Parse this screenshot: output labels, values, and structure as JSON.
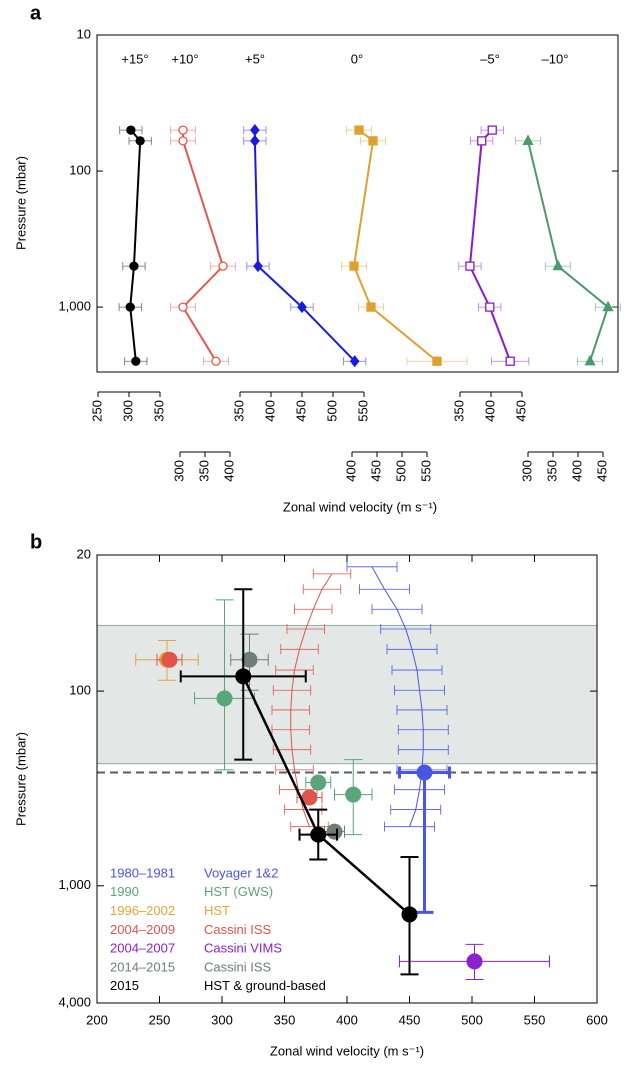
{
  "chart_data": [
    {
      "panel": "a",
      "type": "line",
      "ylabel": "Pressure (mbar)",
      "xlabel": "Zonal wind velocity (m s⁻¹)",
      "ylog": true,
      "ylim": [
        10,
        3000
      ],
      "yticks": [
        10,
        100,
        {
          "value": 1000,
          "label": "1,000"
        }
      ],
      "pressure": [
        50,
        60,
        500,
        1000,
        2500
      ],
      "series": [
        {
          "name": "+15°",
          "color": "#000000",
          "marker": "circle",
          "axis_row": 1,
          "xlim": [
            250,
            350
          ],
          "xticks": [
            250,
            300,
            350
          ],
          "values": [
            303,
            318,
            308,
            302,
            311
          ],
          "xerr": [
            18,
            18,
            18,
            18,
            18
          ]
        },
        {
          "name": "+10°",
          "color": "#e0584e",
          "marker": "open-circle",
          "axis_row": 2,
          "xlim": [
            300,
            400
          ],
          "xticks": [
            300,
            350,
            400
          ],
          "values": [
            306,
            306,
            386,
            306,
            372
          ],
          "xerr": [
            25,
            25,
            25,
            25,
            25
          ]
        },
        {
          "name": "+5°",
          "color": "#1a1ae0",
          "marker": "diamond",
          "axis_row": 1,
          "xlim": [
            350,
            550
          ],
          "xticks": [
            350,
            400,
            450,
            500,
            550
          ],
          "values": [
            374,
            374,
            379,
            450,
            535
          ],
          "xerr": [
            18,
            18,
            18,
            18,
            18
          ]
        },
        {
          "name": "0°",
          "color": "#e0a030",
          "marker": "square",
          "axis_row": 2,
          "xlim": [
            400,
            550
          ],
          "xticks": [
            400,
            450,
            500,
            550
          ],
          "values": [
            414,
            442,
            404,
            438,
            570
          ],
          "xerr": [
            25,
            25,
            25,
            25,
            60
          ]
        },
        {
          "name": "–5°",
          "color": "#8a1ad0",
          "marker": "open-square",
          "axis_row": 1,
          "xlim": [
            350,
            450
          ],
          "xticks": [
            350,
            400,
            450
          ],
          "values": [
            402,
            385,
            366,
            398,
            431
          ],
          "xerr": [
            18,
            18,
            18,
            18,
            30
          ]
        },
        {
          "name": "–10°",
          "color": "#4a9a6a",
          "marker": "triangle",
          "axis_row": 2,
          "xlim": [
            300,
            450
          ],
          "xticks": [
            300,
            350,
            400,
            450
          ],
          "values": [
            null,
            300,
            360,
            460,
            424
          ],
          "xerr": [
            null,
            25,
            25,
            25,
            25
          ]
        }
      ]
    },
    {
      "panel": "b",
      "type": "scatter",
      "ylabel": "Pressure (mbar)",
      "xlabel": "Zonal wind velocity (m s⁻¹)",
      "ylog": true,
      "ylim": [
        20,
        4000
      ],
      "yticks": [
        20,
        100,
        {
          "value": 1000,
          "label": "1,000"
        },
        {
          "value": 4000,
          "label": "4,000"
        }
      ],
      "xlim": [
        200,
        600
      ],
      "xticks": [
        200,
        250,
        300,
        350,
        400,
        450,
        500,
        550,
        600
      ],
      "shaded_band": [
        46,
        236
      ],
      "dashed_line": 262,
      "series": [
        {
          "name": "1980–1981",
          "instrument": "Voyager 1&2",
          "color": "#4a55e6",
          "profile": {
            "pressure": [
              23,
              30,
              38,
              48,
              61,
              78,
              99,
              125,
              158,
              200,
              254,
              321,
              406,
              497
            ],
            "values": [
              420,
              430,
              440,
              447,
              452,
              456,
              458,
              460,
              461,
              461,
              460,
              458,
              455,
              450
            ],
            "xerr": [
              20,
              20,
              20,
              20,
              20,
              20,
              20,
              20,
              20,
              20,
              20,
              20,
              20,
              20
            ]
          },
          "points": {
            "pressure": [
              262
            ],
            "values": [
              462
            ],
            "xerr": [
              20
            ],
            "pmin": [
              262
            ],
            "pmax": [
              1370
            ]
          }
        },
        {
          "name": "1990",
          "instrument": "HST (GWS)",
          "color": "#5aa57a",
          "points": {
            "pressure": [
              109,
              295,
              340
            ],
            "values": [
              302,
              377,
              405
            ],
            "xerr": [
              24,
              10,
              15
            ],
            "pmin": [
              34,
              null,
              225
            ],
            "pmax": [
              254,
              null,
              546
            ]
          }
        },
        {
          "name": "1996–2002",
          "instrument": "HST",
          "color": "#e3a43a",
          "points": {
            "pressure": [
              69
            ],
            "values": [
              256
            ],
            "xerr": [
              25
            ],
            "pmin": [
              55
            ],
            "pmax": [
              88
            ]
          }
        },
        {
          "name": "2004–2009",
          "instrument": "Cassini ISS",
          "color": "#e0544c",
          "profile": {
            "pressure": [
              25,
              30,
              38,
              48,
              61,
              78,
              99,
              125,
              158,
              200,
              254,
              321,
              406,
              497
            ],
            "values": [
              388,
              380,
              373,
              367,
              362,
              358,
              356,
              355,
              355,
              356,
              358,
              361,
              365,
              370
            ],
            "xerr": [
              15,
              15,
              15,
              15,
              15,
              15,
              15,
              15,
              15,
              15,
              15,
              15,
              15,
              15
            ]
          },
          "points": {
            "pressure": [
              69,
              352
            ],
            "values": [
              258,
              370
            ],
            "xerr": [
              10,
              10
            ],
            "pmin": [
              null,
              null
            ],
            "pmax": [
              null,
              null
            ]
          }
        },
        {
          "name": "2004–2007",
          "instrument": "Cassini VIMS",
          "color": "#8a22d0",
          "points": {
            "pressure": [
              2445
            ],
            "values": [
              502
            ],
            "xerr": [
              60
            ],
            "pmin": [
              2000
            ],
            "pmax": [
              3030
            ]
          }
        },
        {
          "name": "2014–2015",
          "instrument": "Cassini ISS",
          "color": "#6f7d79",
          "points": {
            "pressure": [
              69,
              527
            ],
            "values": [
              322,
              390
            ],
            "xerr": [
              15,
              8
            ],
            "pmin": [
              51,
              null
            ],
            "pmax": [
              99,
              null
            ]
          }
        },
        {
          "name": "2015",
          "instrument": "HST & ground-based",
          "color": "#000000",
          "line": true,
          "points": {
            "pressure": [
              84,
              546,
              1403
            ],
            "values": [
              317,
              377,
              450
            ],
            "xerr": [
              50,
              15,
              null
            ],
            "pmin": [
              30,
              406,
              712
            ],
            "pmax": [
              225,
              733,
              2850
            ]
          }
        }
      ]
    }
  ]
}
